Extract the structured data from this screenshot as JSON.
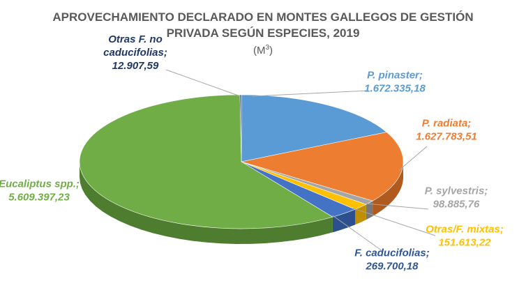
{
  "chart_data": {
    "type": "pie",
    "title_line1": "APROVECHAMIENTO DECLARADO EN MONTES GALLEGOS DE GESTIÓN",
    "title_line2": "PRIVADA SEGÚN ESPECIES, 2019",
    "unit_prefix": "(M",
    "unit_sup": "3",
    "unit_suffix": ")",
    "slices": [
      {
        "label_lines": [
          "P. pinaster;"
        ],
        "value_text": "1.672.335,18",
        "value": 1672335.18,
        "color": "#5b9bd5",
        "side": "#3f6f9c"
      },
      {
        "label_lines": [
          "P. radiata;"
        ],
        "value_text": "1.627.783,51",
        "value": 1627783.51,
        "color": "#ed7d31",
        "side": "#b15a1f"
      },
      {
        "label_lines": [
          "P. sylvestris;"
        ],
        "value_text": "98.885,76",
        "value": 98885.76,
        "color": "#a5a5a5",
        "side": "#787878"
      },
      {
        "label_lines": [
          "Otras/F. mixtas;"
        ],
        "value_text": "151.613,22",
        "value": 151613.22,
        "color": "#ffc000",
        "side": "#bf8f00"
      },
      {
        "label_lines": [
          "F. caducifolias;"
        ],
        "value_text": "269.700,18",
        "value": 269700.18,
        "color": "#4472c4",
        "side": "#2c4f8e"
      },
      {
        "label_lines": [
          "Eucaliptus spp.;"
        ],
        "value_text": "5.609.397,23",
        "value": 5609397.23,
        "color": "#70ad47",
        "side": "#4e7d30"
      },
      {
        "label_lines": [
          "Otras F. no",
          "caducifolias;"
        ],
        "value_text": "12.907,59",
        "value": 12907.59,
        "color": "#264478",
        "side": "#172b4d"
      }
    ],
    "label_colors": [
      "#5b9bd5",
      "#ed7d31",
      "#a5a5a5",
      "#ffc000",
      "#2f5597",
      "#70ad47",
      "#1f3864"
    ]
  }
}
